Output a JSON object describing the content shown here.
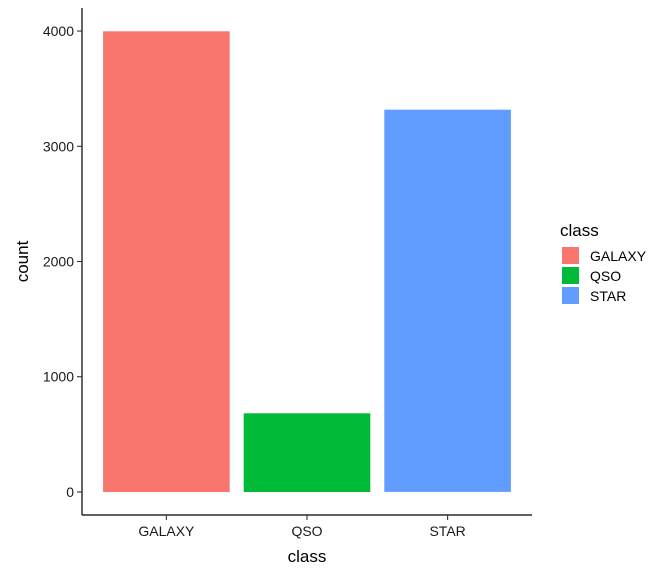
{
  "chart_data": {
    "type": "bar",
    "title": "",
    "xlabel": "class",
    "ylabel": "count",
    "categories": [
      "GALAXY",
      "QSO",
      "STAR"
    ],
    "values": [
      3998,
      683,
      3317
    ],
    "colors": [
      "#F8766D",
      "#00BA38",
      "#619CFF"
    ],
    "ylim": [
      -200,
      4200
    ],
    "yticks": [
      0,
      1000,
      2000,
      3000,
      4000
    ],
    "ytick_labels": [
      "0",
      "1000",
      "2000",
      "3000",
      "4000"
    ],
    "grid": false,
    "legend": {
      "title": "class",
      "position": "right",
      "entries": [
        "GALAXY",
        "QSO",
        "STAR"
      ]
    }
  }
}
